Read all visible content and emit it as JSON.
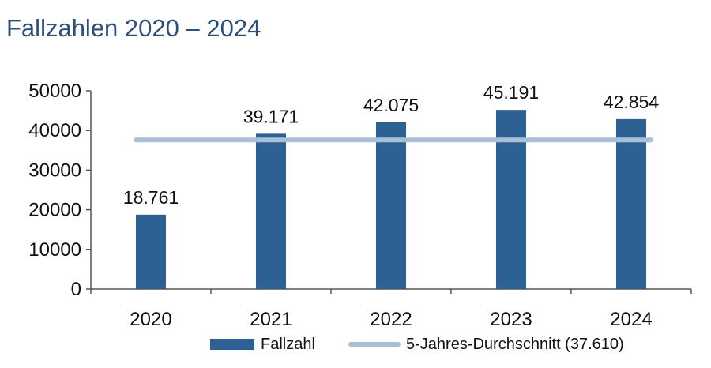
{
  "title": "Fallzahlen 2020 – 2024",
  "colors": {
    "bar": "#2e6193",
    "average_line": "#a9bfd8",
    "title": "#2b4f7a",
    "axis": "#555555"
  },
  "chart_data": {
    "type": "bar",
    "categories": [
      "2020",
      "2021",
      "2022",
      "2023",
      "2024"
    ],
    "series": [
      {
        "name": "Fallzahl",
        "type": "bar",
        "values": [
          18761,
          39171,
          42075,
          45191,
          42854
        ],
        "labels": [
          "18.761",
          "39.171",
          "42.075",
          "45.191",
          "42.854"
        ]
      },
      {
        "name": "5-Jahres-Durchschnitt (37.610)",
        "type": "line",
        "values": [
          37610,
          37610,
          37610,
          37610,
          37610
        ]
      }
    ],
    "y_ticks": [
      "0",
      "10000",
      "20000",
      "30000",
      "40000",
      "50000"
    ],
    "ylim": [
      0,
      50000
    ],
    "grid": false,
    "legend": "bottom"
  }
}
